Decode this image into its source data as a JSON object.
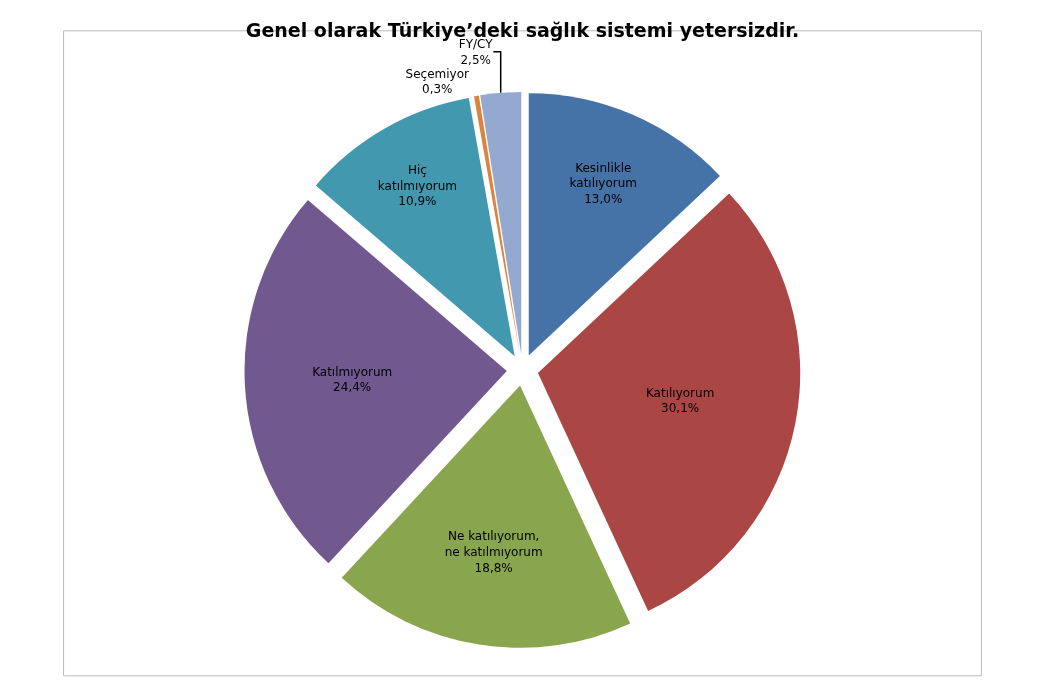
{
  "chart_data": {
    "type": "pie",
    "title": "Genel olarak Türkiye’deki sağlık sistemi yetersizdir.",
    "categories": [
      "Kesinlikle katılıyorum",
      "Katılıyorum",
      "Ne katılıyorum, ne katılmıyorum",
      "Katılmıyorum",
      "Hiç katılmıyorum",
      "Seçemiyor",
      "FY/CY"
    ],
    "values": [
      13.0,
      30.1,
      18.8,
      24.4,
      10.9,
      0.3,
      2.5
    ],
    "value_labels": [
      "13,0%",
      "30,1%",
      "18,8%",
      "24,4%",
      "10,9%",
      "0,3%",
      "2,5%"
    ],
    "colors": [
      "#4572a7",
      "#aa4643",
      "#89a54e",
      "#71588f",
      "#4198af",
      "#db843d",
      "#93a9cf"
    ],
    "legend": false
  }
}
